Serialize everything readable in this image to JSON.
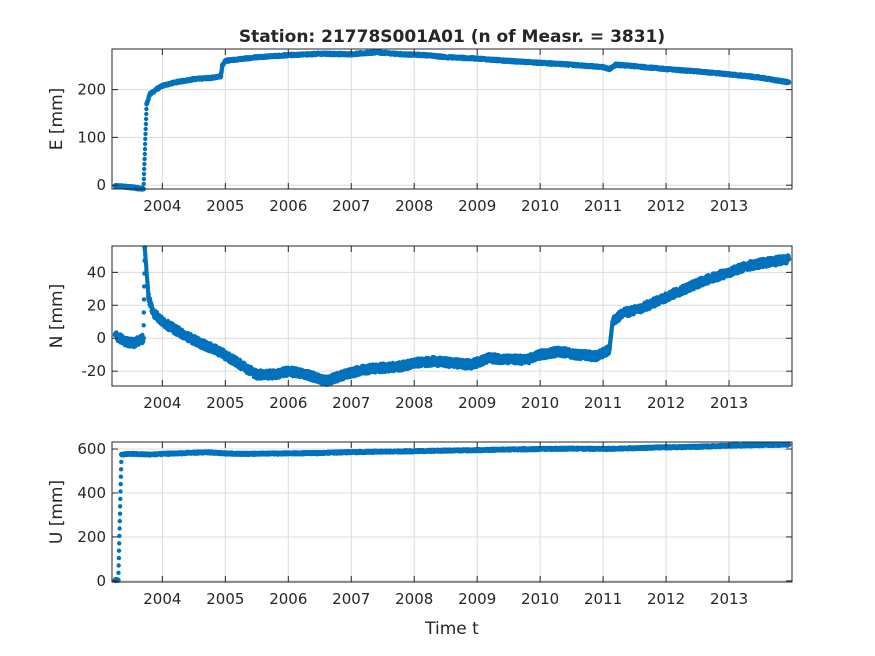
{
  "title": "Station: 21778S001A01 (n of Measr. = 3831)",
  "xlabel": "Time t",
  "colors": {
    "marker": "#0072bd",
    "grid": "#dcdcdc",
    "axis": "#262626"
  },
  "chart_data": [
    {
      "type": "scatter",
      "name": "east",
      "ylabel": "E [mm]",
      "xlim": [
        2003.2,
        2014.0
      ],
      "ylim": [
        -8,
        285
      ],
      "yticks": [
        0,
        100,
        200
      ],
      "xticks": [
        2004,
        2005,
        2006,
        2007,
        2008,
        2009,
        2010,
        2011,
        2012,
        2013
      ],
      "grid": true,
      "x": [
        2003.25,
        2003.4,
        2003.55,
        2003.7,
        2003.75,
        2003.8,
        2003.9,
        2004.0,
        2004.2,
        2004.5,
        2004.8,
        2004.93,
        2004.95,
        2005.0,
        2005.5,
        2006.0,
        2006.5,
        2007.0,
        2007.4,
        2007.8,
        2008.2,
        2008.5,
        2009.0,
        2009.5,
        2010.0,
        2010.5,
        2011.0,
        2011.1,
        2011.2,
        2011.5,
        2012.0,
        2012.5,
        2013.0,
        2013.5,
        2013.95
      ],
      "y": [
        -2,
        -3,
        -5,
        -8,
        170,
        190,
        200,
        208,
        215,
        222,
        225,
        228,
        250,
        260,
        268,
        272,
        275,
        274,
        278,
        274,
        272,
        268,
        265,
        260,
        256,
        252,
        247,
        243,
        252,
        249,
        243,
        238,
        232,
        225,
        215
      ]
    },
    {
      "type": "scatter",
      "name": "north",
      "ylabel": "N [mm]",
      "xlim": [
        2003.2,
        2014.0
      ],
      "ylim": [
        -29,
        56
      ],
      "yticks": [
        -20,
        0,
        20,
        40
      ],
      "xticks": [
        2004,
        2005,
        2006,
        2007,
        2008,
        2009,
        2010,
        2011,
        2012,
        2013
      ],
      "grid": true,
      "x": [
        2003.25,
        2003.4,
        2003.55,
        2003.7,
        2003.72,
        2003.78,
        2003.85,
        2004.0,
        2004.3,
        2004.6,
        2004.9,
        2005.2,
        2005.5,
        2005.8,
        2006.0,
        2006.3,
        2006.6,
        2006.9,
        2007.2,
        2007.5,
        2007.8,
        2008.0,
        2008.3,
        2008.6,
        2008.9,
        2009.2,
        2009.5,
        2009.8,
        2010.0,
        2010.3,
        2010.6,
        2010.9,
        2011.1,
        2011.15,
        2011.3,
        2011.6,
        2012.0,
        2012.3,
        2012.6,
        2013.0,
        2013.3,
        2013.6,
        2013.95
      ],
      "y": [
        2,
        -2,
        -3,
        0,
        55,
        25,
        16,
        10,
        3,
        -3,
        -8,
        -15,
        -22,
        -22,
        -20,
        -22,
        -26,
        -22,
        -19,
        -18,
        -17,
        -15,
        -14,
        -15,
        -16,
        -12,
        -13,
        -13,
        -10,
        -8,
        -10,
        -11,
        -7,
        10,
        15,
        18,
        25,
        30,
        35,
        40,
        44,
        46,
        48
      ]
    },
    {
      "type": "scatter",
      "name": "up",
      "ylabel": "U [mm]",
      "xlim": [
        2003.2,
        2014.0
      ],
      "ylim": [
        -5,
        632
      ],
      "yticks": [
        0,
        200,
        400,
        600
      ],
      "xticks": [
        2004,
        2005,
        2006,
        2007,
        2008,
        2009,
        2010,
        2011,
        2012,
        2013
      ],
      "grid": true,
      "x": [
        2003.25,
        2003.3,
        2003.35,
        2003.5,
        2003.8,
        2004.2,
        2004.7,
        2005.0,
        2005.3,
        2006.0,
        2006.5,
        2007.0,
        2007.5,
        2008.0,
        2008.5,
        2009.0,
        2009.5,
        2010.0,
        2010.5,
        2011.0,
        2011.5,
        2012.0,
        2012.5,
        2013.0,
        2013.5,
        2013.95
      ],
      "y": [
        5,
        3,
        575,
        578,
        575,
        580,
        585,
        580,
        578,
        580,
        582,
        586,
        588,
        590,
        593,
        595,
        598,
        600,
        602,
        600,
        604,
        608,
        610,
        615,
        618,
        620
      ]
    }
  ]
}
